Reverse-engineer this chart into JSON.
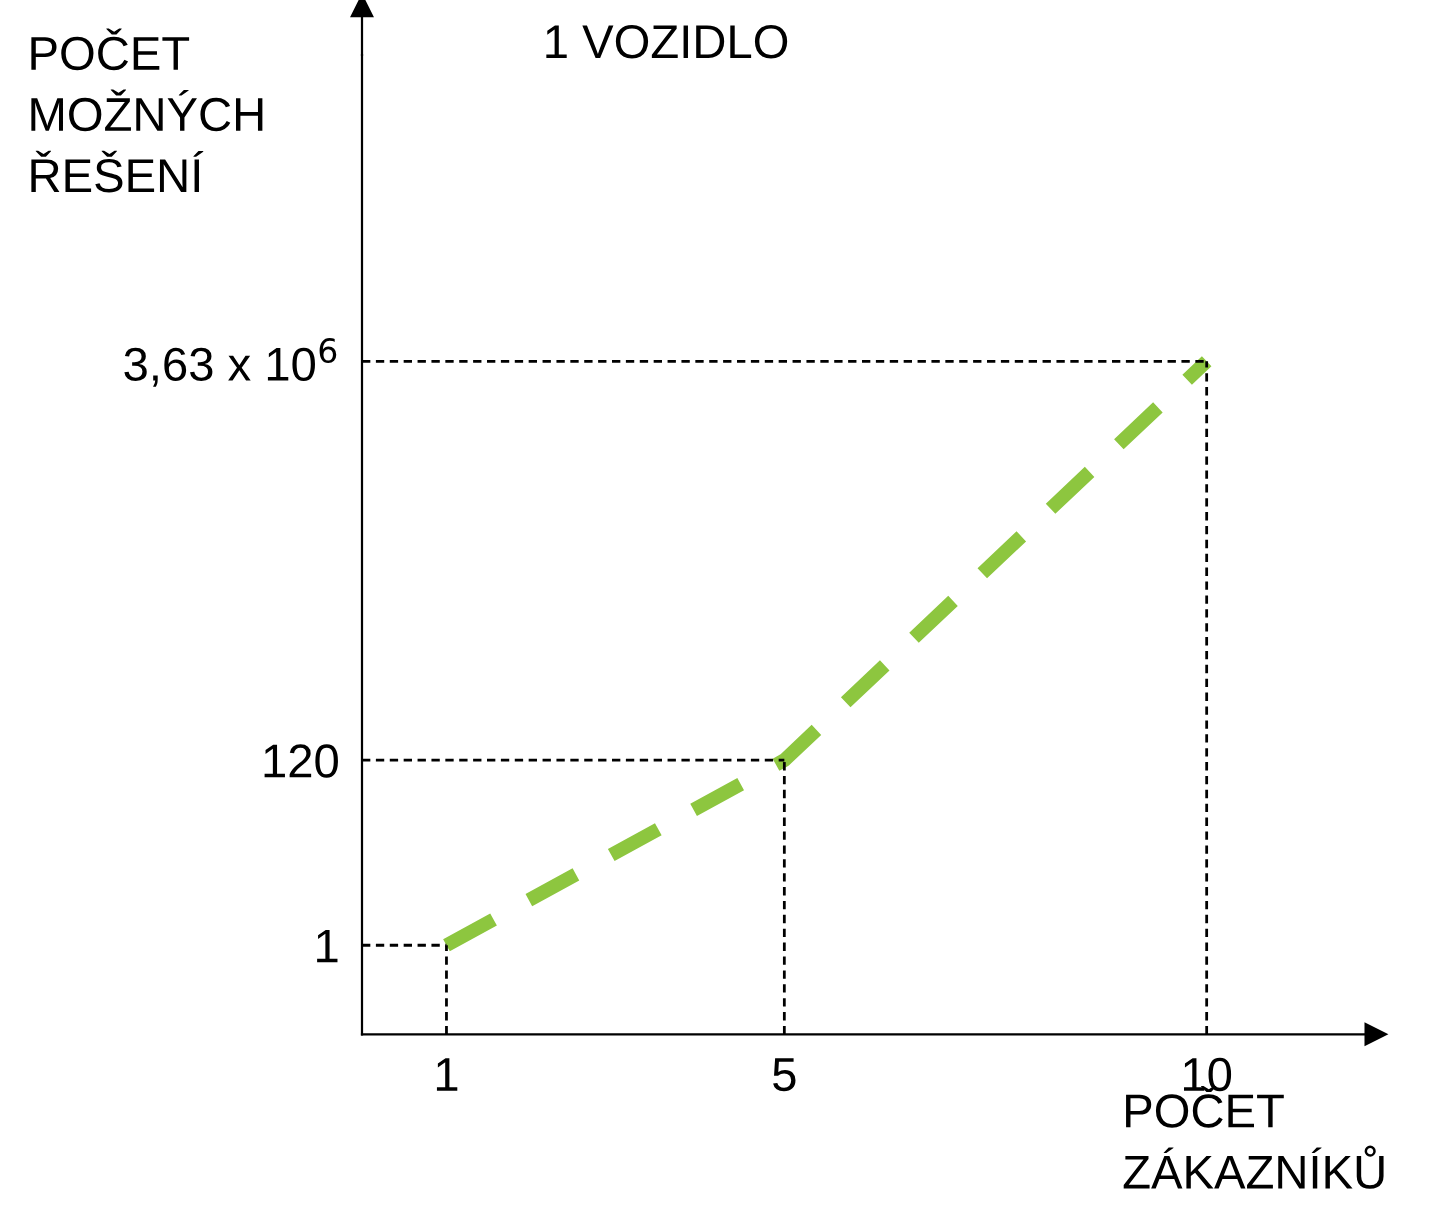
{
  "chart_data": {
    "type": "line",
    "title": "1 VOZIDLO",
    "xlabel": "POČET ZÁKAZNÍKŮ",
    "ylabel": "POČET MOŽNÝCH ŘEŠENÍ",
    "x": [
      1,
      5,
      10
    ],
    "series": [
      {
        "color": "#8dc63f",
        "values": [
          1,
          120,
          3630000
        ]
      }
    ],
    "line_style": "dashed",
    "log": "y",
    "grid": false,
    "legend": false,
    "xlim": [
      0,
      12
    ],
    "ylim": [
      0.1,
      10000000000
    ],
    "xticks": [
      1,
      5,
      10
    ],
    "yticks": [
      1,
      120,
      {
        "value": 3630000,
        "label": "3,63 x 10$^{6}$"
      }
    ],
    "ref_lines": [
      {
        "axis": "x",
        "value": 1,
        "line_style": "dashed",
        "color": "#000000"
      },
      {
        "axis": "x",
        "value": 5,
        "line_style": "dashed",
        "color": "#000000"
      },
      {
        "axis": "x",
        "value": 10,
        "line_style": "dashed",
        "color": "#000000"
      },
      {
        "axis": "y",
        "value": 1,
        "line_style": "dashed",
        "color": "#000000"
      },
      {
        "axis": "y",
        "value": 120,
        "line_style": "dashed",
        "color": "#000000"
      },
      {
        "axis": "y",
        "value": 3630000,
        "line_style": "dashed",
        "color": "#000000"
      }
    ]
  }
}
